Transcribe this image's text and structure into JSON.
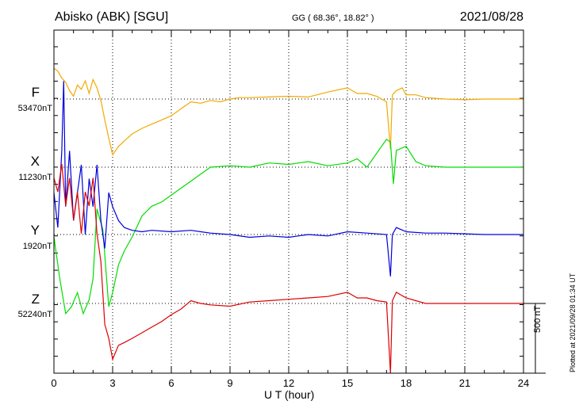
{
  "header": {
    "station": "Abisko (ABK)  [SGU]",
    "coords": "GG ( 68.36°,  18.82° )",
    "date": "2021/08/28"
  },
  "footer": {
    "plotted": "Plotted at 2021/09/28 01:34 UT"
  },
  "chart_data": {
    "type": "line",
    "xlabel": "U T (hour)",
    "xlim": [
      0,
      24
    ],
    "xticks": [
      "0",
      "3",
      "6",
      "9",
      "12",
      "15",
      "18",
      "21",
      "24"
    ],
    "scale_bar": "500 nT",
    "grid": true,
    "series": [
      {
        "name": "F",
        "baseline_label": "53470nT",
        "color": "#f2a900",
        "x": [
          0,
          0.2,
          0.4,
          0.6,
          0.8,
          1.0,
          1.2,
          1.4,
          1.6,
          1.8,
          2.0,
          2.2,
          2.4,
          2.6,
          2.8,
          3.0,
          3.3,
          3.6,
          4.0,
          4.5,
          5.0,
          5.5,
          6.0,
          6.5,
          7.0,
          7.5,
          8.0,
          8.5,
          9.0,
          9.5,
          10.0,
          11.0,
          12.0,
          13.0,
          14.0,
          15.0,
          15.5,
          16.0,
          16.5,
          17.0,
          17.2,
          17.3,
          17.5,
          17.8,
          18.0,
          18.5,
          19.0,
          20.0,
          21.0,
          22.0,
          23.0,
          24.0
        ],
        "y": [
          220,
          200,
          150,
          120,
          60,
          20,
          100,
          70,
          130,
          40,
          140,
          80,
          -10,
          -150,
          -280,
          -400,
          -340,
          -300,
          -250,
          -210,
          -180,
          -150,
          -120,
          -70,
          -20,
          -30,
          -10,
          -20,
          0,
          10,
          10,
          15,
          20,
          15,
          50,
          80,
          40,
          40,
          20,
          -20,
          -360,
          30,
          60,
          80,
          30,
          30,
          10,
          0,
          -5,
          0,
          0,
          0
        ]
      },
      {
        "name": "X",
        "baseline_label": "11230nT",
        "color": "#00dd00",
        "x": [
          0,
          0.3,
          0.6,
          0.9,
          1.2,
          1.5,
          1.8,
          2.0,
          2.2,
          2.5,
          2.8,
          3.0,
          3.3,
          3.6,
          4.0,
          4.5,
          5.0,
          5.5,
          6.0,
          6.5,
          7.0,
          7.5,
          8.0,
          9.0,
          10.0,
          11.0,
          12.0,
          13.0,
          14.0,
          15.0,
          15.5,
          16.0,
          16.5,
          17.0,
          17.2,
          17.35,
          17.5,
          18.0,
          18.5,
          19.0,
          20.0,
          21.0,
          22.0,
          23.0,
          24.0
        ],
        "y": [
          -500,
          -800,
          -1050,
          -1000,
          -900,
          -1050,
          -950,
          -800,
          -300,
          -450,
          -1000,
          -900,
          -700,
          -600,
          -500,
          -350,
          -280,
          -250,
          -200,
          -150,
          -100,
          -50,
          0,
          10,
          0,
          30,
          20,
          40,
          10,
          30,
          60,
          0,
          100,
          200,
          180,
          -120,
          120,
          150,
          40,
          10,
          0,
          0,
          0,
          0,
          0
        ]
      },
      {
        "name": "Y",
        "baseline_label": "1920nT",
        "color": "#0000dd",
        "x": [
          0,
          0.2,
          0.4,
          0.5,
          0.6,
          0.8,
          1.0,
          1.2,
          1.4,
          1.6,
          1.8,
          2.0,
          2.2,
          2.4,
          2.6,
          2.8,
          3.0,
          3.3,
          3.6,
          4.0,
          4.5,
          5.0,
          6.0,
          7.0,
          8.0,
          9.0,
          10.0,
          11.0,
          12.0,
          13.0,
          14.0,
          15.0,
          16.0,
          17.0,
          17.2,
          17.3,
          17.5,
          18.0,
          19.0,
          20.0,
          21.0,
          22.0,
          23.0,
          24.0
        ],
        "y": [
          300,
          50,
          600,
          1100,
          200,
          600,
          100,
          300,
          500,
          0,
          400,
          200,
          500,
          100,
          -100,
          300,
          200,
          100,
          50,
          30,
          20,
          30,
          20,
          30,
          10,
          0,
          -20,
          -10,
          -20,
          0,
          -10,
          20,
          10,
          0,
          -300,
          0,
          50,
          20,
          10,
          10,
          5,
          0,
          0,
          0
        ]
      },
      {
        "name": "Z",
        "baseline_label": "52240nT",
        "color": "#dd0000",
        "x": [
          0,
          0.2,
          0.4,
          0.6,
          0.8,
          1.0,
          1.2,
          1.4,
          1.6,
          1.8,
          2.0,
          2.2,
          2.4,
          2.6,
          2.8,
          3.0,
          3.3,
          3.6,
          4.0,
          4.5,
          5.0,
          5.5,
          6.0,
          6.5,
          7.0,
          7.5,
          8.0,
          9.0,
          10.0,
          11.0,
          12.0,
          13.0,
          14.0,
          15.0,
          15.5,
          16.0,
          16.5,
          17.0,
          17.2,
          17.3,
          17.5,
          18.0,
          18.5,
          19.0,
          20.0,
          21.0,
          22.0,
          23.0,
          24.0
        ],
        "y": [
          900,
          800,
          1000,
          700,
          900,
          600,
          800,
          500,
          800,
          700,
          900,
          500,
          300,
          -150,
          -250,
          -400,
          -300,
          -280,
          -250,
          -210,
          -170,
          -130,
          -80,
          -40,
          20,
          0,
          -10,
          -20,
          10,
          20,
          30,
          40,
          50,
          80,
          40,
          40,
          20,
          10,
          -500,
          20,
          80,
          40,
          20,
          0,
          0,
          0,
          0,
          0,
          0
        ]
      }
    ]
  }
}
